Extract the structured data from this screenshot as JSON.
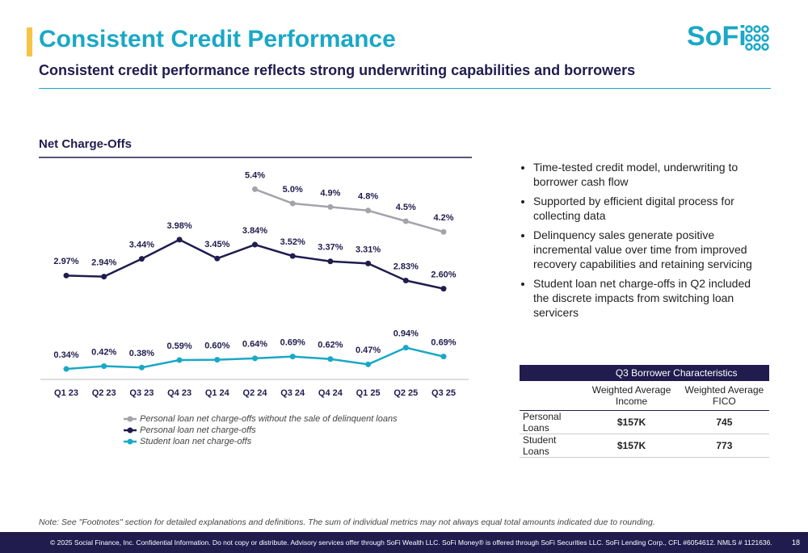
{
  "header": {
    "title": "Consistent Credit Performance",
    "subtitle": "Consistent credit performance reflects strong underwriting capabilities and borrowers",
    "logo": "SoFi"
  },
  "chart_data": {
    "type": "line",
    "title": "Net Charge-Offs",
    "categories": [
      "Q1 23",
      "Q2 23",
      "Q3 23",
      "Q4 23",
      "Q1 24",
      "Q2 24",
      "Q3 24",
      "Q4 24",
      "Q1 25",
      "Q2 25",
      "Q3 25"
    ],
    "ylim": [
      0,
      6
    ],
    "series": [
      {
        "name": "Personal loan net charge-offs without the sale of delinquent loans",
        "color": "#a3a3aa",
        "values": [
          null,
          null,
          null,
          null,
          null,
          5.4,
          5.0,
          4.9,
          4.8,
          4.5,
          4.2
        ],
        "value_labels": [
          null,
          null,
          null,
          null,
          null,
          "5.4%",
          "5.0%",
          "4.9%",
          "4.8%",
          "4.5%",
          "4.2%"
        ]
      },
      {
        "name": "Personal loan net charge-offs",
        "color": "#201c4e",
        "values": [
          2.97,
          2.94,
          3.44,
          3.98,
          3.45,
          3.84,
          3.52,
          3.37,
          3.31,
          2.83,
          2.6
        ],
        "value_labels": [
          "2.97%",
          "2.94%",
          "3.44%",
          "3.98%",
          "3.45%",
          "3.84%",
          "3.52%",
          "3.37%",
          "3.31%",
          "2.83%",
          "2.60%"
        ]
      },
      {
        "name": "Student loan net charge-offs",
        "color": "#1aa8c6",
        "values": [
          0.34,
          0.42,
          0.38,
          0.59,
          0.6,
          0.64,
          0.69,
          0.62,
          0.47,
          0.94,
          0.69
        ],
        "value_labels": [
          "0.34%",
          "0.42%",
          "0.38%",
          "0.59%",
          "0.60%",
          "0.64%",
          "0.69%",
          "0.62%",
          "0.47%",
          "0.94%",
          "0.69%"
        ]
      }
    ]
  },
  "bullets": [
    "Time-tested credit model, underwriting to borrower cash flow",
    "Supported by efficient digital process for collecting data",
    "Delinquency sales generate positive incremental value over time from improved recovery capabilities and retaining servicing",
    "Student loan net charge-offs in Q2 included the discrete impacts from switching loan servicers"
  ],
  "table": {
    "title": "Q3 Borrower Characteristics",
    "columns": [
      "Weighted Average Income",
      "Weighted Average FICO"
    ],
    "rows": [
      [
        "Personal Loans",
        "$157K",
        "745"
      ],
      [
        "Student Loans",
        "$157K",
        "773"
      ]
    ]
  },
  "note": "Note: See \"Footnotes\" section for detailed explanations and definitions. The sum of individual metrics may not always equal total amounts indicated due to rounding.",
  "footer": {
    "text": "© 2025 Social Finance, Inc. Confidential Information. Do not copy or distribute. Advisory services offer through SoFi Wealth LLC. SoFi Money® is offered through SoFi Securities LLC. SoFi Lending Corp., CFL #6054612. NMLS # 1121636.",
    "page": "18"
  }
}
